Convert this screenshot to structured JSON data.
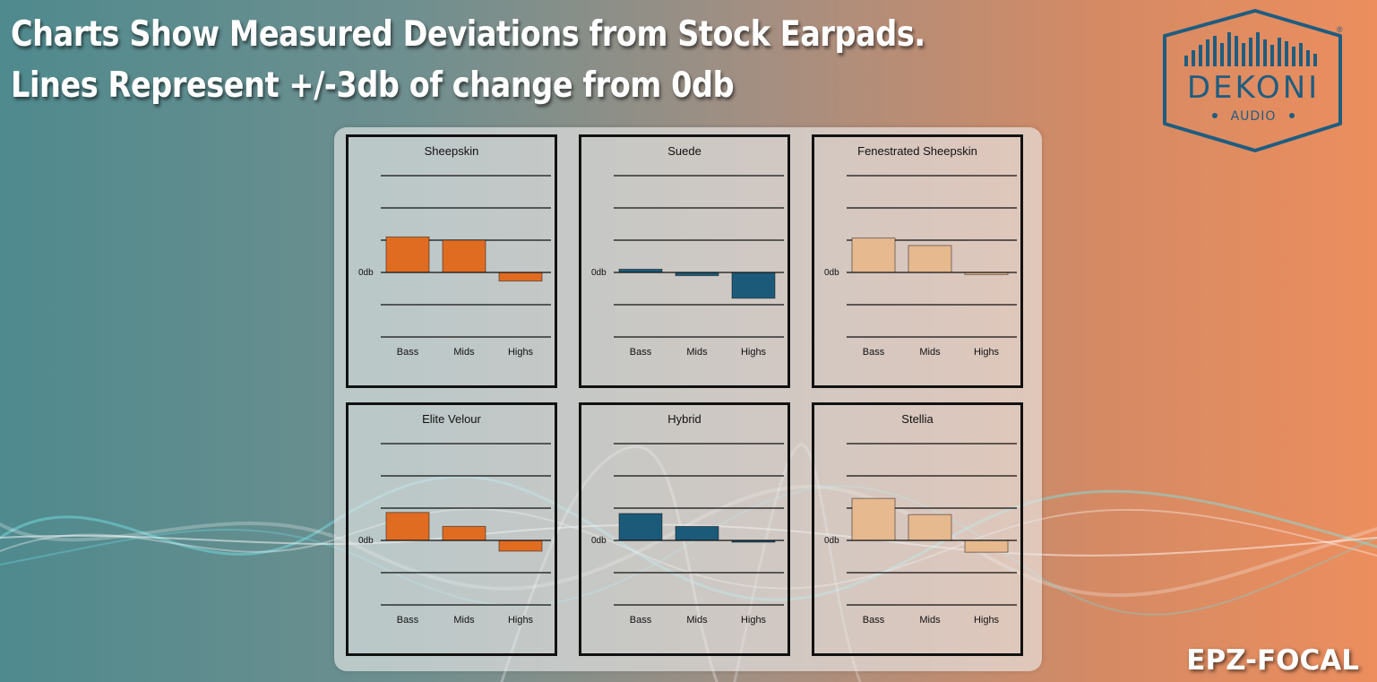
{
  "header": {
    "line1": "Charts Show Measured Deviations from Stock Earpads.",
    "line2": "Lines Represent +/-3db of change from 0db"
  },
  "logo": {
    "brand": "DEKONI",
    "sub": "AUDIO",
    "mark": "®"
  },
  "model": "EPZ-FOCAL",
  "colors": {
    "orange": "#e06c22",
    "blue": "#1c5a7a",
    "peach": "#e6b98f"
  },
  "chart_data": [
    {
      "type": "bar",
      "title": "Sheepskin",
      "categories": [
        "Bass",
        "Mids",
        "Highs"
      ],
      "values": [
        3.3,
        3.0,
        -0.8
      ],
      "color": "orange",
      "ylim": [
        -6,
        9
      ],
      "zero_label": "0db",
      "gridlines": [
        -6,
        -3,
        3,
        6,
        9
      ]
    },
    {
      "type": "bar",
      "title": "Suede",
      "categories": [
        "Bass",
        "Mids",
        "Highs"
      ],
      "values": [
        0.3,
        -0.3,
        -2.4
      ],
      "color": "blue",
      "ylim": [
        -6,
        9
      ],
      "zero_label": "0db",
      "gridlines": [
        -6,
        -3,
        3,
        6,
        9
      ]
    },
    {
      "type": "bar",
      "title": "Fenestrated Sheepskin",
      "categories": [
        "Bass",
        "Mids",
        "Highs"
      ],
      "values": [
        3.2,
        2.5,
        -0.2
      ],
      "color": "peach",
      "ylim": [
        -6,
        9
      ],
      "zero_label": "0db",
      "gridlines": [
        -6,
        -3,
        3,
        6,
        9
      ]
    },
    {
      "type": "bar",
      "title": "Elite Velour",
      "categories": [
        "Bass",
        "Mids",
        "Highs"
      ],
      "values": [
        2.6,
        1.3,
        -1.0
      ],
      "color": "orange",
      "ylim": [
        -6,
        9
      ],
      "zero_label": "0db",
      "gridlines": [
        -6,
        -3,
        3,
        6,
        9
      ]
    },
    {
      "type": "bar",
      "title": "Hybrid",
      "categories": [
        "Bass",
        "Mids",
        "Highs"
      ],
      "values": [
        2.5,
        1.3,
        -0.1
      ],
      "color": "blue",
      "ylim": [
        -6,
        9
      ],
      "zero_label": "0db",
      "gridlines": [
        -6,
        -3,
        3,
        6,
        9
      ]
    },
    {
      "type": "bar",
      "title": "Stellia",
      "categories": [
        "Bass",
        "Mids",
        "Highs"
      ],
      "values": [
        3.9,
        2.4,
        -1.1
      ],
      "color": "peach",
      "ylim": [
        -6,
        9
      ],
      "zero_label": "0db",
      "gridlines": [
        -6,
        -3,
        3,
        6,
        9
      ]
    }
  ]
}
